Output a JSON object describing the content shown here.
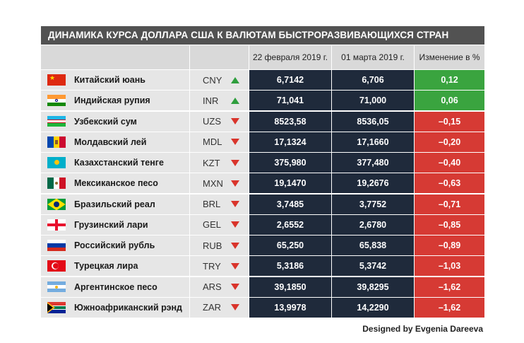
{
  "title": "ДИНАМИКА КУРСА ДОЛЛАРА США К ВАЛЮТАМ БЫСТРОРАЗВИВАЮЩИХСЯ СТРАН",
  "columns": {
    "name": "",
    "code": "",
    "date1": "22 февраля 2019 г.",
    "date2": "01 марта 2019 г.",
    "change": "Изменение в %"
  },
  "colors": {
    "header_bar": "#525252",
    "value_cells": "#1f2a3b",
    "positive": "#3aa43f",
    "negative": "#d63a34",
    "arrow_up": "#2e9e3d",
    "arrow_down": "#d9342b"
  },
  "chart_data": {
    "type": "table",
    "title": "ДИНАМИКА КУРСА ДОЛЛАРА США К ВАЛЮТАМ БЫСТРОРАЗВИВАЮЩИХСЯ СТРАН",
    "headers": [
      "",
      "",
      "22 февраля 2019 г.",
      "01 марта 2019 г.",
      "Изменение в %"
    ],
    "rows": [
      {
        "flag": "china-flag-icon",
        "name": "Китайский юань",
        "code": "CNY",
        "trend": "up",
        "v1": "6,7142",
        "v2": "6,706",
        "change": "0,12"
      },
      {
        "flag": "india-flag-icon",
        "name": "Индийская рупия",
        "code": "INR",
        "trend": "up",
        "v1": "71,041",
        "v2": "71,000",
        "change": "0,06"
      },
      {
        "flag": "uzbekistan-flag-icon",
        "name": "Узбекский сум",
        "code": "UZS",
        "trend": "down",
        "v1": "8523,58",
        "v2": "8536,05",
        "change": "–0,15"
      },
      {
        "flag": "moldova-flag-icon",
        "name": "Молдавский лей",
        "code": "MDL",
        "trend": "down",
        "v1": "17,1324",
        "v2": "17,1660",
        "change": "–0,20"
      },
      {
        "flag": "kazakhstan-flag-icon",
        "name": "Казахстанский тенге",
        "code": "KZT",
        "trend": "down",
        "v1": "375,980",
        "v2": "377,480",
        "change": "–0,40"
      },
      {
        "flag": "mexico-flag-icon",
        "name": "Мексиканское песо",
        "code": "MXN",
        "trend": "down",
        "v1": "19,1470",
        "v2": "19,2676",
        "change": "–0,63"
      },
      {
        "flag": "brazil-flag-icon",
        "name": "Бразильский реал",
        "code": "BRL",
        "trend": "down",
        "v1": "3,7485",
        "v2": "3,7752",
        "change": "–0,71"
      },
      {
        "flag": "georgia-flag-icon",
        "name": "Грузинский лари",
        "code": "GEL",
        "trend": "down",
        "v1": "2,6552",
        "v2": "2,6780",
        "change": "–0,85"
      },
      {
        "flag": "russia-flag-icon",
        "name": "Российский рубль",
        "code": "RUB",
        "trend": "down",
        "v1": "65,250",
        "v2": "65,838",
        "change": "–0,89"
      },
      {
        "flag": "turkey-flag-icon",
        "name": "Турецкая лира",
        "code": "TRY",
        "trend": "down",
        "v1": "5,3186",
        "v2": "5,3742",
        "change": "–1,03"
      },
      {
        "flag": "argentina-flag-icon",
        "name": "Аргентинское песо",
        "code": "ARS",
        "trend": "down",
        "v1": "39,1850",
        "v2": "39,8295",
        "change": "–1,62"
      },
      {
        "flag": "south-africa-flag-icon",
        "name": "Южноафриканский рэнд",
        "code": "ZAR",
        "trend": "down",
        "v1": "13,9978",
        "v2": "14,2290",
        "change": "–1,62"
      }
    ]
  },
  "credit": "Designed by Evgenia Dareeva"
}
